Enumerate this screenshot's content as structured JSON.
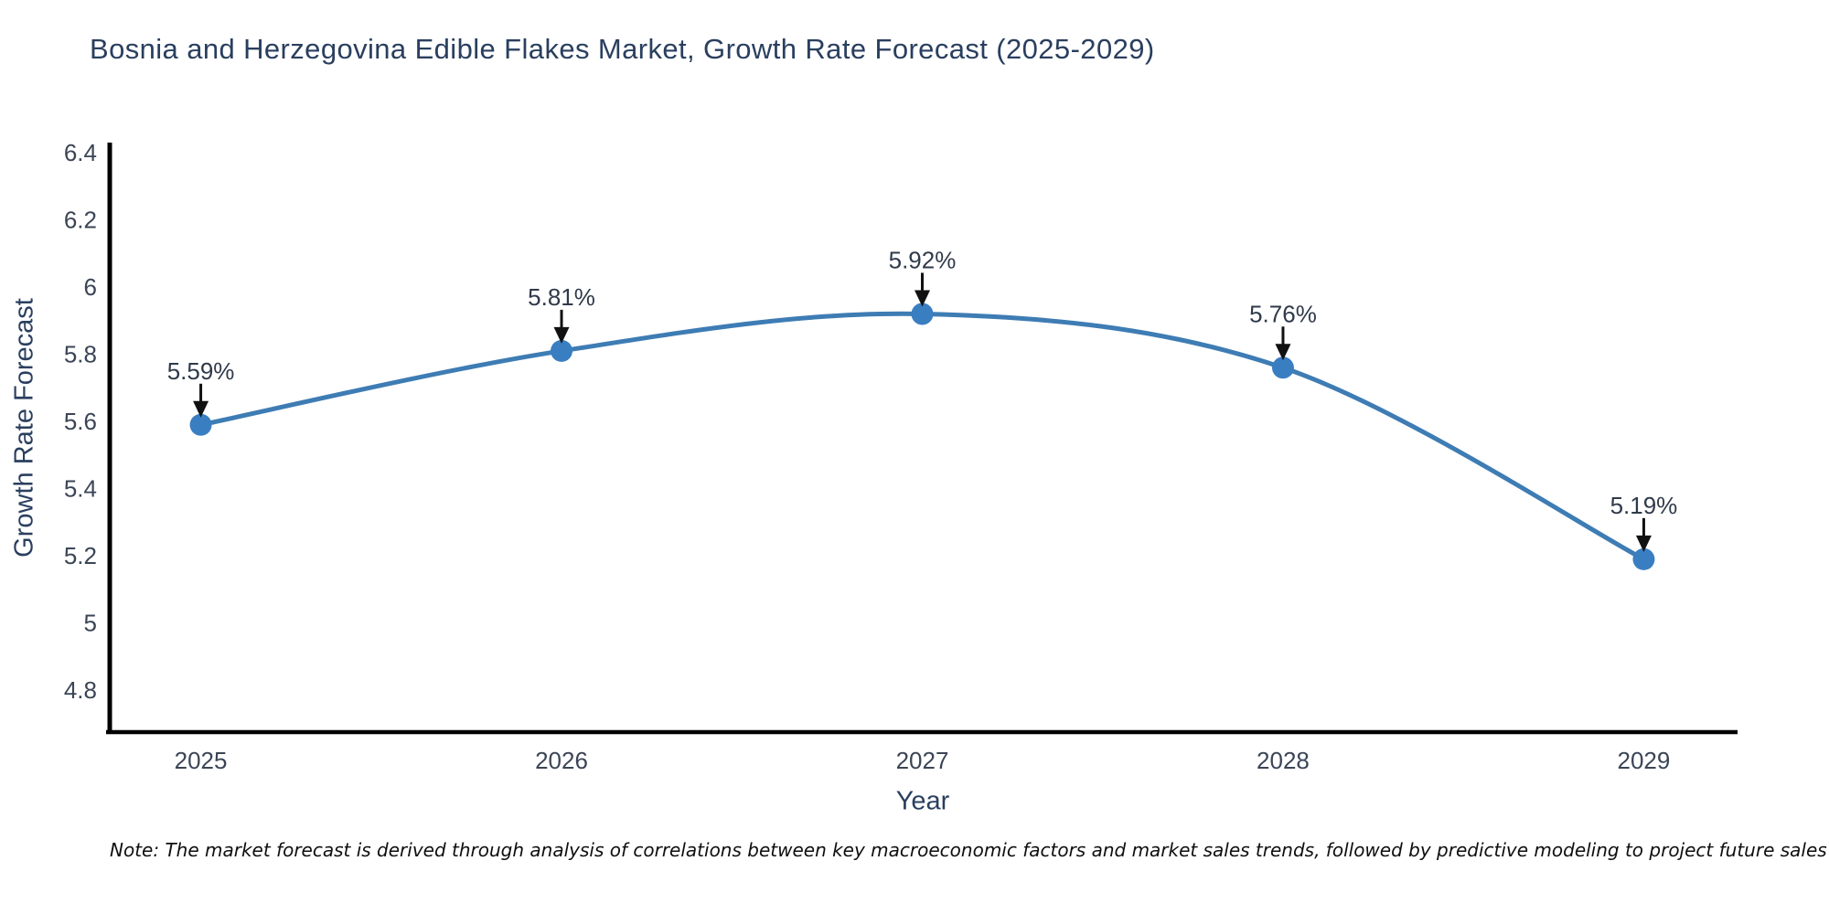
{
  "chart_data": {
    "type": "line",
    "title": "Bosnia and Herzegovina Edible Flakes Market, Growth Rate Forecast (2025-2029)",
    "xlabel": "Year",
    "ylabel": "Growth Rate Forecast",
    "x": [
      2025,
      2026,
      2027,
      2028,
      2029
    ],
    "values": [
      5.59,
      5.81,
      5.92,
      5.76,
      5.19
    ],
    "point_labels": [
      "5.59%",
      "5.81%",
      "5.92%",
      "5.76%",
      "5.19%"
    ],
    "xtick_labels": [
      "2025",
      "2026",
      "2027",
      "2028",
      "2029"
    ],
    "yticks": [
      4.8,
      5,
      5.2,
      5.4,
      5.6,
      5.8,
      6,
      6.2,
      6.4
    ],
    "ytick_labels": [
      "4.8",
      "5",
      "5.2",
      "5.4",
      "5.6",
      "5.8",
      "6",
      "6.2",
      "6.4"
    ],
    "xlim": [
      2024.74,
      2029.26
    ],
    "ylim": [
      4.67,
      6.43
    ],
    "line_shape": "spline",
    "grid": false,
    "legend": "none",
    "annotations_arrowed": true
  },
  "style": {
    "line_color": "#3e7cb4",
    "marker_color": "#3a7ec2",
    "axis_color": "#000000",
    "title_color": "#2a3f5f",
    "tick_color": "#3b4556",
    "annotation_color": "#2f3a4a",
    "arrow_color": "#111111",
    "background": "#ffffff"
  },
  "note": {
    "text": "Note: The market forecast is derived through analysis of correlations between key macroeconomic factors and market sales trends, followed by predictive modeling to project future sales"
  }
}
